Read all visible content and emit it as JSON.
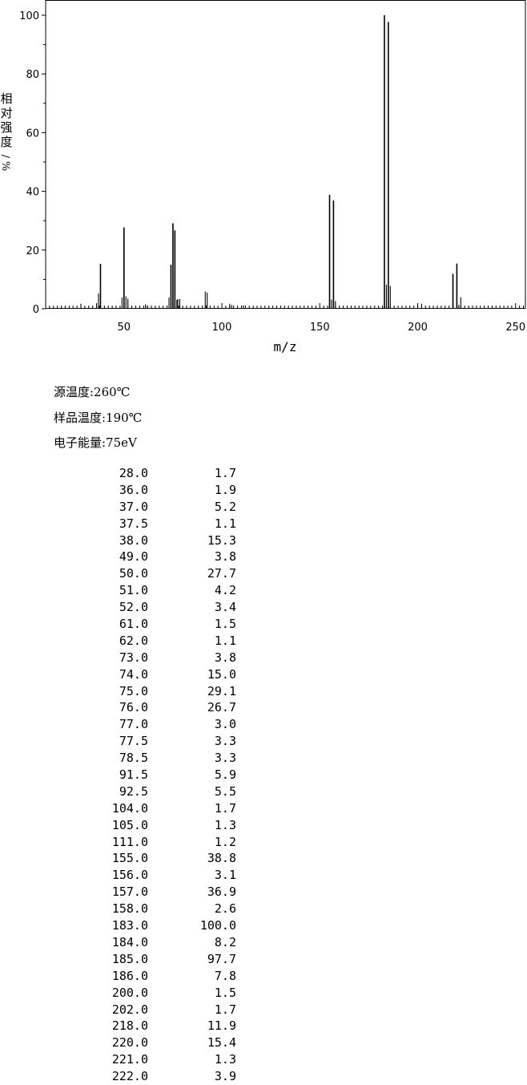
{
  "chart_data": {
    "type": "bar",
    "xlabel": "m/z",
    "ylabel": "相对强度/%",
    "xlim": [
      10,
      255
    ],
    "ylim": [
      0,
      100
    ],
    "xticks": [
      50,
      100,
      150,
      200,
      250
    ],
    "yticks": [
      0,
      20,
      40,
      60,
      80,
      100
    ],
    "grid": false,
    "peaks": [
      {
        "mz": 28.0,
        "abundance": 1.7
      },
      {
        "mz": 36.0,
        "abundance": 1.9
      },
      {
        "mz": 37.0,
        "abundance": 5.2
      },
      {
        "mz": 37.5,
        "abundance": 1.1
      },
      {
        "mz": 38.0,
        "abundance": 15.3
      },
      {
        "mz": 49.0,
        "abundance": 3.8
      },
      {
        "mz": 50.0,
        "abundance": 27.7
      },
      {
        "mz": 51.0,
        "abundance": 4.2
      },
      {
        "mz": 52.0,
        "abundance": 3.4
      },
      {
        "mz": 61.0,
        "abundance": 1.5
      },
      {
        "mz": 62.0,
        "abundance": 1.1
      },
      {
        "mz": 73.0,
        "abundance": 3.8
      },
      {
        "mz": 74.0,
        "abundance": 15.0
      },
      {
        "mz": 75.0,
        "abundance": 29.1
      },
      {
        "mz": 76.0,
        "abundance": 26.7
      },
      {
        "mz": 77.0,
        "abundance": 3.0
      },
      {
        "mz": 77.5,
        "abundance": 3.3
      },
      {
        "mz": 78.5,
        "abundance": 3.3
      },
      {
        "mz": 91.5,
        "abundance": 5.9
      },
      {
        "mz": 92.5,
        "abundance": 5.5
      },
      {
        "mz": 104.0,
        "abundance": 1.7
      },
      {
        "mz": 105.0,
        "abundance": 1.3
      },
      {
        "mz": 111.0,
        "abundance": 1.2
      },
      {
        "mz": 155.0,
        "abundance": 38.8
      },
      {
        "mz": 156.0,
        "abundance": 3.1
      },
      {
        "mz": 157.0,
        "abundance": 36.9
      },
      {
        "mz": 158.0,
        "abundance": 2.6
      },
      {
        "mz": 183.0,
        "abundance": 100.0
      },
      {
        "mz": 184.0,
        "abundance": 8.2
      },
      {
        "mz": 185.0,
        "abundance": 97.7
      },
      {
        "mz": 186.0,
        "abundance": 7.8
      },
      {
        "mz": 200.0,
        "abundance": 1.5
      },
      {
        "mz": 202.0,
        "abundance": 1.7
      },
      {
        "mz": 218.0,
        "abundance": 11.9
      },
      {
        "mz": 220.0,
        "abundance": 15.4
      },
      {
        "mz": 221.0,
        "abundance": 1.3
      },
      {
        "mz": 222.0,
        "abundance": 3.9
      }
    ]
  },
  "conditions": {
    "source_temp": "源温度:260℃",
    "sample_temp": "样品温度:190℃",
    "electron_energy": "电子能量:75eV"
  },
  "peak_table": [
    [
      "28.0",
      "1.7"
    ],
    [
      "36.0",
      "1.9"
    ],
    [
      "37.0",
      "5.2"
    ],
    [
      "37.5",
      "1.1"
    ],
    [
      "38.0",
      "15.3"
    ],
    [
      "49.0",
      "3.8"
    ],
    [
      "50.0",
      "27.7"
    ],
    [
      "51.0",
      "4.2"
    ],
    [
      "52.0",
      "3.4"
    ],
    [
      "61.0",
      "1.5"
    ],
    [
      "62.0",
      "1.1"
    ],
    [
      "73.0",
      "3.8"
    ],
    [
      "74.0",
      "15.0"
    ],
    [
      "75.0",
      "29.1"
    ],
    [
      "76.0",
      "26.7"
    ],
    [
      "77.0",
      "3.0"
    ],
    [
      "77.5",
      "3.3"
    ],
    [
      "78.5",
      "3.3"
    ],
    [
      "91.5",
      "5.9"
    ],
    [
      "92.5",
      "5.5"
    ],
    [
      "104.0",
      "1.7"
    ],
    [
      "105.0",
      "1.3"
    ],
    [
      "111.0",
      "1.2"
    ],
    [
      "155.0",
      "38.8"
    ],
    [
      "156.0",
      "3.1"
    ],
    [
      "157.0",
      "36.9"
    ],
    [
      "158.0",
      "2.6"
    ],
    [
      "183.0",
      "100.0"
    ],
    [
      "184.0",
      "8.2"
    ],
    [
      "185.0",
      "97.7"
    ],
    [
      "186.0",
      "7.8"
    ],
    [
      "200.0",
      "1.5"
    ],
    [
      "202.0",
      "1.7"
    ],
    [
      "218.0",
      "11.9"
    ],
    [
      "220.0",
      "15.4"
    ],
    [
      "221.0",
      "1.3"
    ],
    [
      "222.0",
      "3.9"
    ]
  ]
}
